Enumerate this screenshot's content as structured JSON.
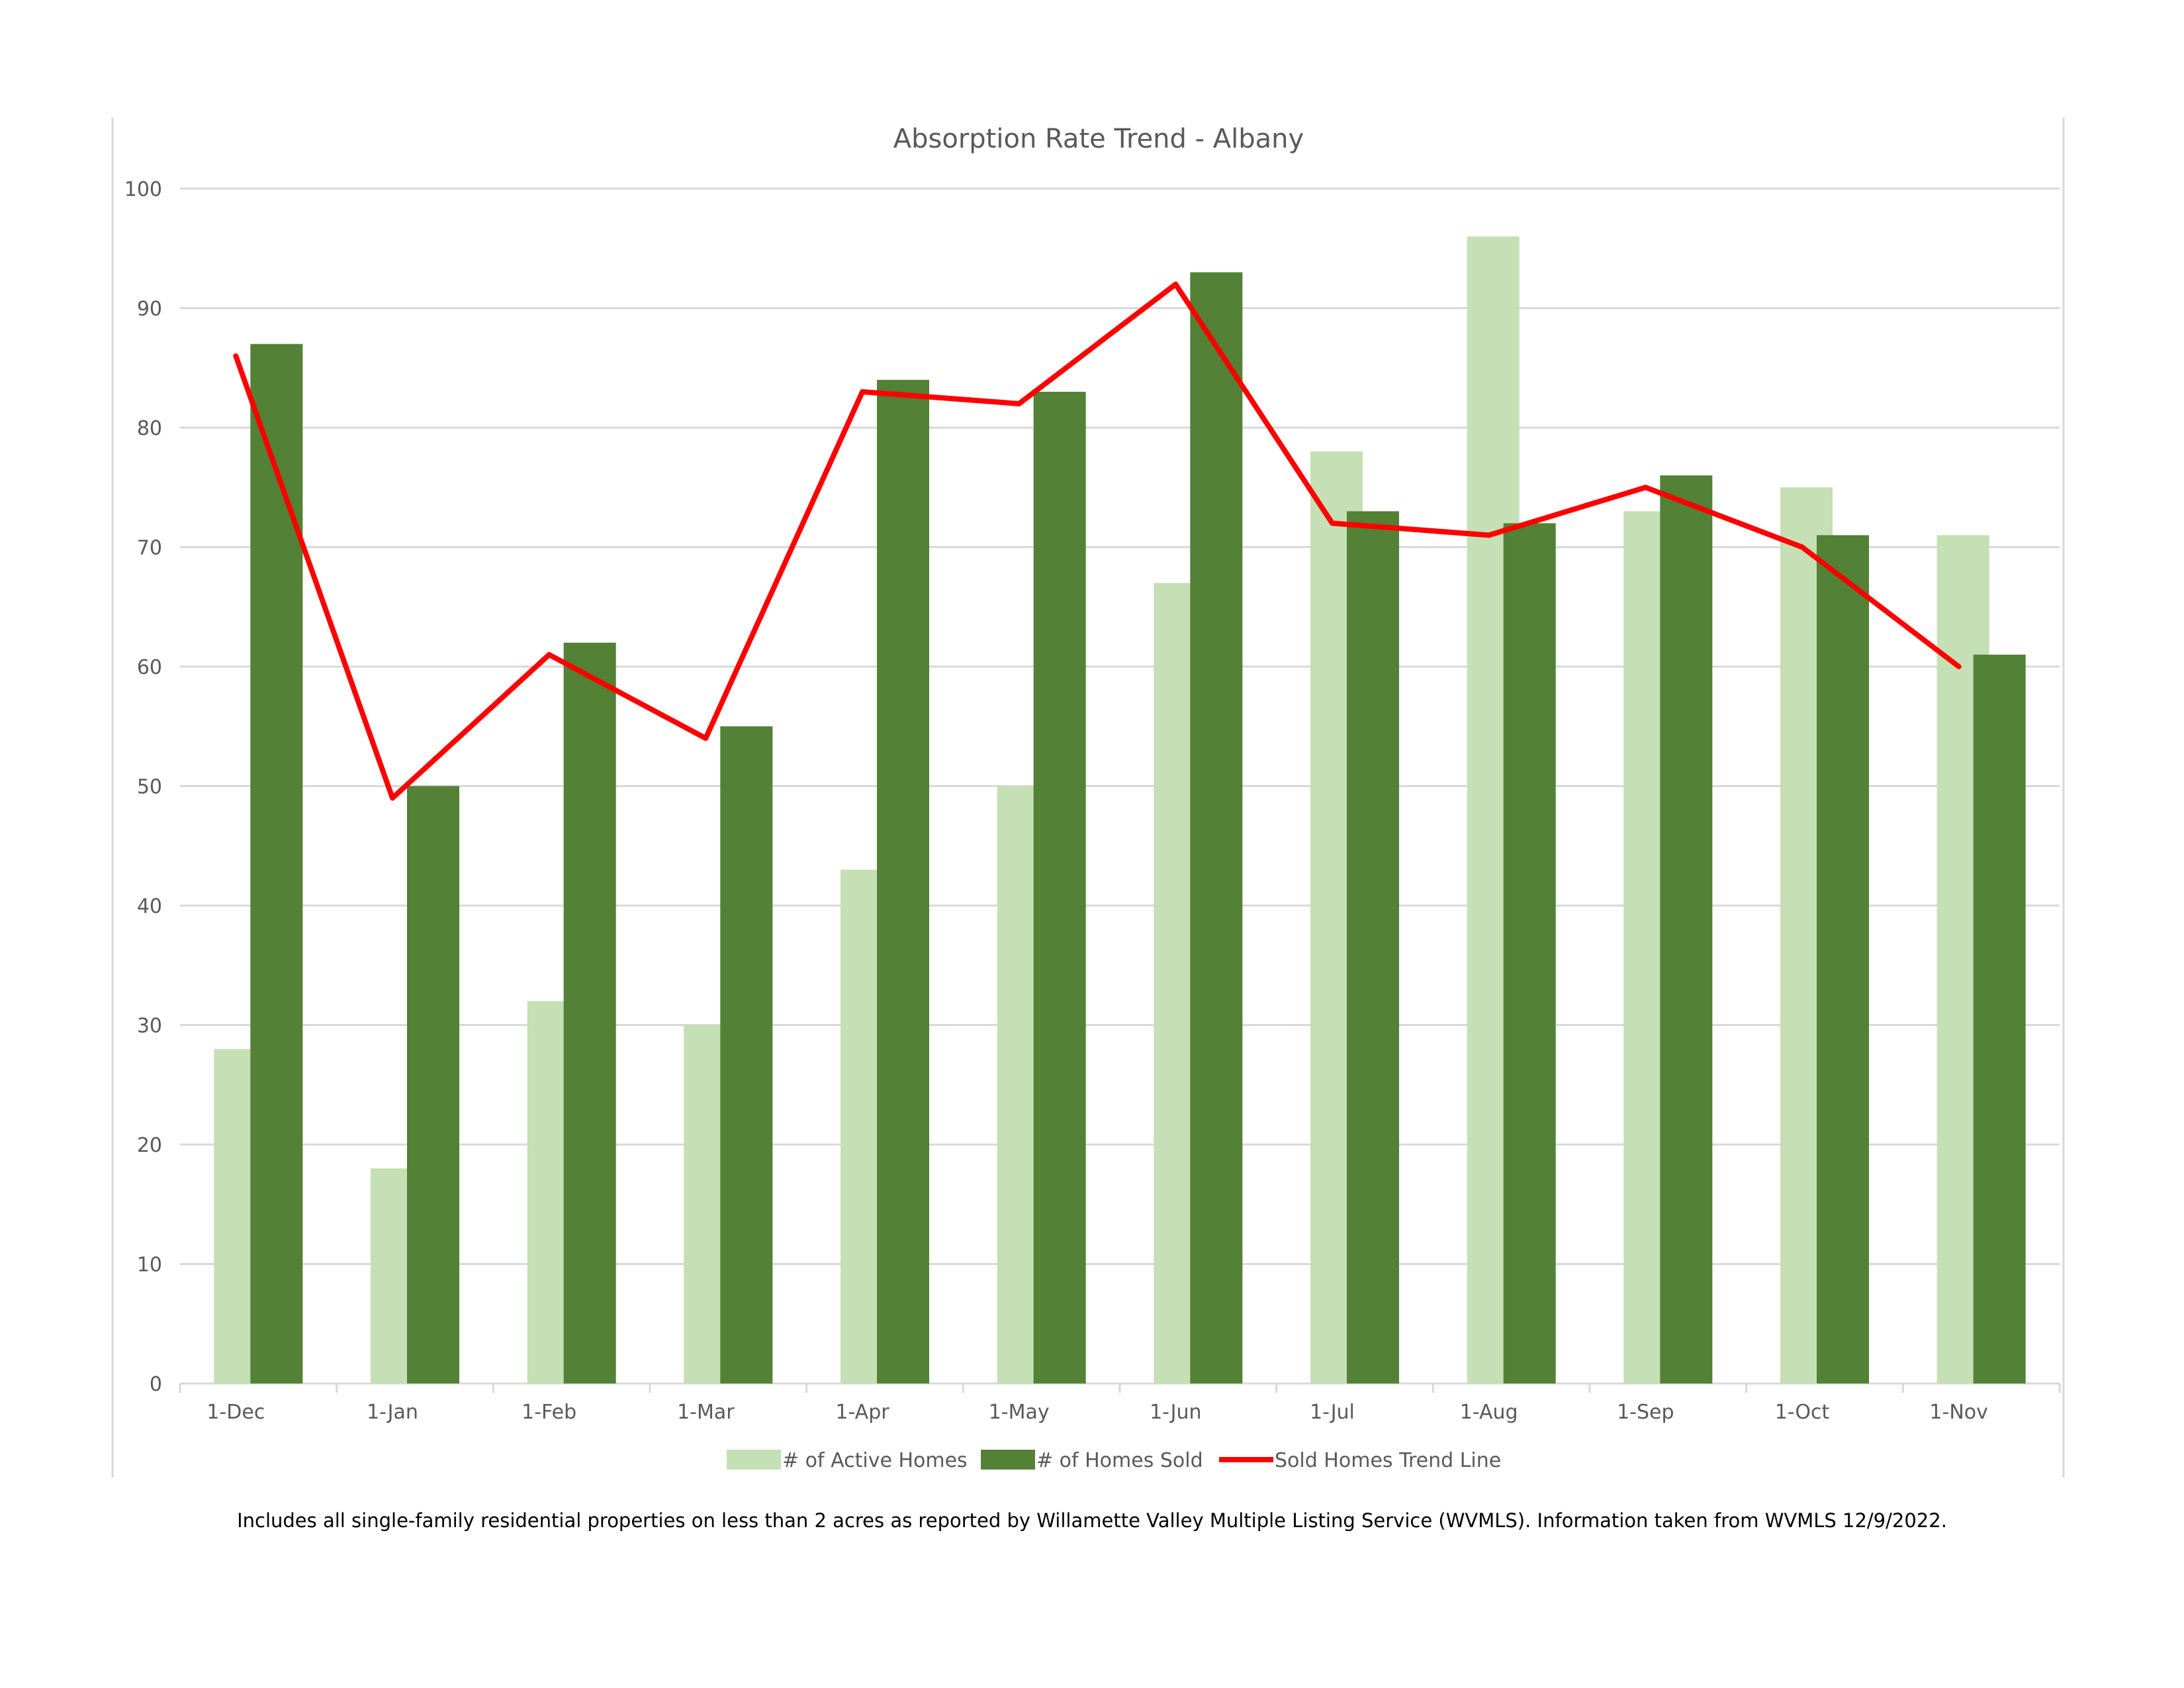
{
  "chart_data": {
    "type": "bar",
    "title": "Absorption Rate Trend - Albany",
    "xlabel": "",
    "ylabel": "",
    "ylim": [
      0,
      100
    ],
    "yticks": [
      0,
      10,
      20,
      30,
      40,
      50,
      60,
      70,
      80,
      90,
      100
    ],
    "grid": true,
    "legend_position": "bottom",
    "categories": [
      "1-Dec",
      "1-Jan",
      "1-Feb",
      "1-Mar",
      "1-Apr",
      "1-May",
      "1-Jun",
      "1-Jul",
      "1-Aug",
      "1-Sep",
      "1-Oct",
      "1-Nov"
    ],
    "series": [
      {
        "name": "# of Active Homes",
        "type": "bar",
        "color": "#c5e0b4",
        "values": [
          28,
          18,
          32,
          30,
          43,
          50,
          67,
          78,
          96,
          73,
          75,
          71
        ]
      },
      {
        "name": "# of Homes Sold",
        "type": "bar",
        "color": "#538135",
        "values": [
          87,
          50,
          62,
          55,
          84,
          83,
          93,
          73,
          72,
          76,
          71,
          61
        ]
      },
      {
        "name": "Sold Homes Trend Line",
        "type": "line",
        "color": "#ff0000",
        "values": [
          86,
          49,
          61,
          54,
          83,
          82,
          92,
          72,
          71,
          75,
          70,
          60
        ]
      }
    ]
  },
  "footnote": "Includes all single-family residential properties on less than 2 acres as reported by Willamette Valley Multiple Listing Service (WVMLS). Information taken from WVMLS 12/9/2022."
}
